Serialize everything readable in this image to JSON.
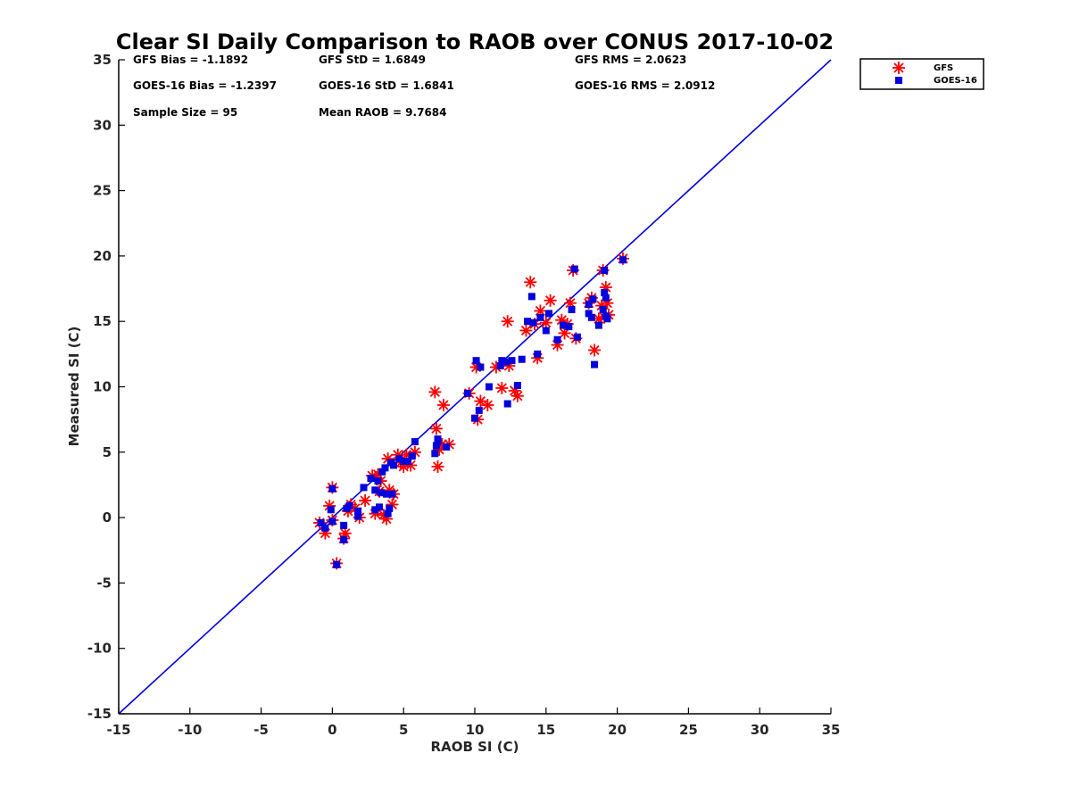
{
  "chart_data": {
    "type": "scatter",
    "title": "Clear SI Daily Comparison to RAOB over CONUS 2017-10-02",
    "xlabel": "RAOB SI (C)",
    "ylabel": "Measured SI (C)",
    "xlim": [
      -15,
      35
    ],
    "ylim": [
      -15,
      35
    ],
    "xticks": [
      "-15",
      "-10",
      "-5",
      "0",
      "5",
      "10",
      "15",
      "20",
      "25",
      "30",
      "35"
    ],
    "yticks": [
      "-15",
      "-10",
      "-5",
      "0",
      "5",
      "10",
      "15",
      "20",
      "25",
      "30",
      "35"
    ],
    "grid": false,
    "legend_position": "outside-top-right",
    "reference_line": {
      "from": [
        -15,
        -15
      ],
      "to": [
        35,
        35
      ],
      "color": "#0000dd"
    },
    "stats": {
      "gfs_bias": "GFS Bias = -1.1892",
      "gfs_std": "GFS StD = 1.6849",
      "gfs_rms": "GFS RMS = 2.0623",
      "goes_bias": "GOES-16 Bias = -1.2397",
      "goes_std": "GOES-16 StD = 1.6841",
      "goes_rms": "GOES-16 RMS = 2.0912",
      "sample_size": "Sample Size = 95",
      "mean_raob": "Mean RAOB = 9.7684"
    },
    "series": [
      {
        "name": "GFS",
        "marker": "asterisk",
        "color": "#ff0000",
        "points": [
          [
            -0.9,
            -0.4
          ],
          [
            -0.5,
            -1.2
          ],
          [
            -0.2,
            0.9
          ],
          [
            0.0,
            2.3
          ],
          [
            0.0,
            -0.2
          ],
          [
            0.3,
            -3.5
          ],
          [
            0.8,
            -1.6
          ],
          [
            0.9,
            -1.2
          ],
          [
            1.1,
            0.5
          ],
          [
            1.3,
            1.0
          ],
          [
            1.6,
            0.7
          ],
          [
            1.9,
            0.0
          ],
          [
            2.3,
            1.3
          ],
          [
            2.8,
            3.2
          ],
          [
            3.0,
            0.3
          ],
          [
            3.2,
            3.3
          ],
          [
            3.3,
            2.0
          ],
          [
            3.4,
            2.8
          ],
          [
            3.6,
            0.2
          ],
          [
            3.8,
            -0.1
          ],
          [
            3.9,
            4.5
          ],
          [
            4.0,
            2.1
          ],
          [
            4.2,
            1.0
          ],
          [
            4.3,
            1.8
          ],
          [
            4.6,
            4.8
          ],
          [
            4.8,
            4.2
          ],
          [
            5.0,
            3.9
          ],
          [
            5.2,
            4.8
          ],
          [
            5.5,
            4.0
          ],
          [
            5.8,
            5.0
          ],
          [
            7.2,
            9.6
          ],
          [
            7.3,
            6.8
          ],
          [
            7.4,
            3.9
          ],
          [
            7.5,
            5.2
          ],
          [
            7.7,
            5.6
          ],
          [
            7.8,
            8.6
          ],
          [
            8.2,
            5.6
          ],
          [
            9.6,
            9.5
          ],
          [
            10.1,
            11.5
          ],
          [
            10.2,
            7.5
          ],
          [
            10.4,
            8.9
          ],
          [
            10.9,
            8.6
          ],
          [
            11.5,
            11.5
          ],
          [
            11.9,
            9.9
          ],
          [
            12.3,
            15.0
          ],
          [
            12.4,
            11.6
          ],
          [
            12.8,
            9.7
          ],
          [
            13.0,
            9.3
          ],
          [
            13.6,
            14.3
          ],
          [
            13.9,
            18.0
          ],
          [
            14.2,
            14.8
          ],
          [
            14.4,
            12.2
          ],
          [
            14.6,
            15.8
          ],
          [
            15.0,
            14.9
          ],
          [
            15.3,
            16.6
          ],
          [
            15.8,
            13.2
          ],
          [
            16.1,
            15.1
          ],
          [
            16.3,
            14.1
          ],
          [
            16.5,
            14.8
          ],
          [
            16.7,
            16.4
          ],
          [
            16.9,
            18.9
          ],
          [
            17.1,
            13.7
          ],
          [
            18.0,
            16.4
          ],
          [
            18.2,
            16.8
          ],
          [
            18.4,
            12.8
          ],
          [
            18.7,
            15.2
          ],
          [
            18.9,
            16.2
          ],
          [
            19.0,
            18.9
          ],
          [
            19.1,
            15.3
          ],
          [
            19.2,
            17.6
          ],
          [
            19.3,
            16.4
          ],
          [
            19.4,
            15.5
          ],
          [
            20.4,
            19.8
          ]
        ]
      },
      {
        "name": "GOES-16",
        "marker": "square",
        "color": "#0000dd",
        "points": [
          [
            -0.8,
            -0.4
          ],
          [
            -0.5,
            -0.8
          ],
          [
            -0.1,
            0.6
          ],
          [
            0.0,
            2.2
          ],
          [
            0.0,
            -0.3
          ],
          [
            0.3,
            -3.6
          ],
          [
            0.8,
            -1.7
          ],
          [
            0.8,
            -0.6
          ],
          [
            1.0,
            0.7
          ],
          [
            1.2,
            0.9
          ],
          [
            1.8,
            0.1
          ],
          [
            1.8,
            0.5
          ],
          [
            2.2,
            2.3
          ],
          [
            2.7,
            3.0
          ],
          [
            3.0,
            2.1
          ],
          [
            3.0,
            0.6
          ],
          [
            3.2,
            2.8
          ],
          [
            3.3,
            0.8
          ],
          [
            3.4,
            1.9
          ],
          [
            3.5,
            3.5
          ],
          [
            3.7,
            3.8
          ],
          [
            3.8,
            1.8
          ],
          [
            3.9,
            0.3
          ],
          [
            4.0,
            0.7
          ],
          [
            4.1,
            4.2
          ],
          [
            4.2,
            1.8
          ],
          [
            4.3,
            4.0
          ],
          [
            4.7,
            4.5
          ],
          [
            5.0,
            4.3
          ],
          [
            5.3,
            4.3
          ],
          [
            5.6,
            4.7
          ],
          [
            5.8,
            5.8
          ],
          [
            7.2,
            4.9
          ],
          [
            7.3,
            5.5
          ],
          [
            7.4,
            6.0
          ],
          [
            7.4,
            5.8
          ],
          [
            8.0,
            5.4
          ],
          [
            9.5,
            9.5
          ],
          [
            10.0,
            7.6
          ],
          [
            10.1,
            12.0
          ],
          [
            10.3,
            8.2
          ],
          [
            10.4,
            11.5
          ],
          [
            11.0,
            10.0
          ],
          [
            11.8,
            11.6
          ],
          [
            11.9,
            12.0
          ],
          [
            12.2,
            11.9
          ],
          [
            12.3,
            8.7
          ],
          [
            12.6,
            12.0
          ],
          [
            13.0,
            10.1
          ],
          [
            13.3,
            12.1
          ],
          [
            13.7,
            15.0
          ],
          [
            14.0,
            16.9
          ],
          [
            14.1,
            14.9
          ],
          [
            14.4,
            12.5
          ],
          [
            14.6,
            15.3
          ],
          [
            15.0,
            14.3
          ],
          [
            15.2,
            15.6
          ],
          [
            15.8,
            13.6
          ],
          [
            16.2,
            14.7
          ],
          [
            16.6,
            14.6
          ],
          [
            16.8,
            15.9
          ],
          [
            17.0,
            19.0
          ],
          [
            17.2,
            13.8
          ],
          [
            18.0,
            15.6
          ],
          [
            18.0,
            16.3
          ],
          [
            18.2,
            15.3
          ],
          [
            18.3,
            16.7
          ],
          [
            18.4,
            11.7
          ],
          [
            18.7,
            14.7
          ],
          [
            19.0,
            15.9
          ],
          [
            19.1,
            18.9
          ],
          [
            19.1,
            17.2
          ],
          [
            19.2,
            15.4
          ],
          [
            19.2,
            16.8
          ],
          [
            19.3,
            15.2
          ],
          [
            20.4,
            19.7
          ]
        ]
      }
    ]
  }
}
